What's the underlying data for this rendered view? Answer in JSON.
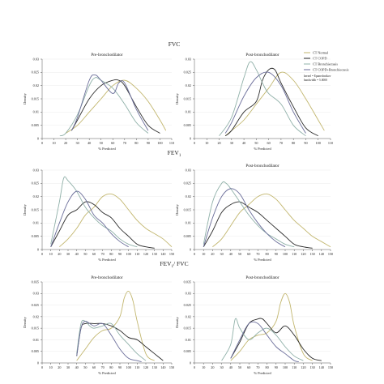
{
  "sections": [
    {
      "title": "FVC",
      "sub": ""
    },
    {
      "title": "FEV",
      "sub": "1"
    },
    {
      "title": "FEV",
      "sub": "1",
      "suffix": "/ FVC"
    }
  ],
  "legend": {
    "entries": [
      "CT Normal",
      "CT COPD",
      "CT Bronchiectasis",
      "CT COPD+Bronchiectasis"
    ],
    "note_lines": [
      "kernel = Epanechnikov",
      "bandwidth = 5.0000"
    ]
  },
  "colors": {
    "CT Normal": "#c2b66e",
    "CT COPD": "#2b2b2b",
    "CT Bronchiectasis": "#8fb0a8",
    "CT COPD+Bronchiectasis": "#6b6e9a"
  },
  "chart_data": [
    {
      "type": "line",
      "title": "Pre-bronchodilator",
      "xlabel": "% Predicted",
      "ylabel": "Density",
      "xlim": [
        0,
        110
      ],
      "ylim": [
        0,
        0.03
      ],
      "xticks": [
        "0",
        "10",
        "20",
        "30",
        "40",
        "50",
        "60",
        "70",
        "80",
        "90",
        "100",
        "110"
      ],
      "yticks": [
        "0",
        "0.005",
        "0.01",
        "0.015",
        "0.02",
        "0.025",
        "0.03"
      ],
      "series": [
        {
          "name": "CT Normal",
          "x": [
            20,
            30,
            40,
            50,
            60,
            70,
            80,
            90,
            100,
            105
          ],
          "y": [
            0.002,
            0.005,
            0.01,
            0.015,
            0.02,
            0.022,
            0.019,
            0.014,
            0.007,
            0.003
          ]
        },
        {
          "name": "CT COPD",
          "x": [
            25,
            30,
            40,
            50,
            60,
            65,
            70,
            80,
            90,
            100
          ],
          "y": [
            0.003,
            0.007,
            0.015,
            0.02,
            0.022,
            0.022,
            0.02,
            0.012,
            0.005,
            0.002
          ]
        },
        {
          "name": "CT Bronchiectasis",
          "x": [
            15,
            20,
            30,
            40,
            45,
            50,
            60,
            70,
            80,
            90
          ],
          "y": [
            0.001,
            0.002,
            0.009,
            0.02,
            0.023,
            0.022,
            0.019,
            0.013,
            0.006,
            0.002
          ]
        },
        {
          "name": "CT COPD+Bronchiectasis",
          "x": [
            25,
            30,
            40,
            45,
            50,
            60,
            65,
            70,
            80,
            90
          ],
          "y": [
            0.003,
            0.008,
            0.022,
            0.024,
            0.022,
            0.017,
            0.021,
            0.021,
            0.011,
            0.003
          ]
        }
      ]
    },
    {
      "type": "line",
      "title": "Post-bronchodilator",
      "xlabel": "% Predicted",
      "ylabel": "Density",
      "xlim": [
        0,
        110
      ],
      "ylim": [
        0,
        0.03
      ],
      "xticks": [
        "0",
        "10",
        "20",
        "30",
        "40",
        "50",
        "60",
        "70",
        "80",
        "90",
        "100",
        "110"
      ],
      "yticks": [
        "0",
        "0.005",
        "0.01",
        "0.015",
        "0.02",
        "0.025",
        "0.03"
      ],
      "series": [
        {
          "name": "CT Normal",
          "x": [
            25,
            30,
            40,
            50,
            60,
            70,
            80,
            90,
            100,
            105
          ],
          "y": [
            0.001,
            0.003,
            0.007,
            0.013,
            0.019,
            0.025,
            0.022,
            0.015,
            0.007,
            0.003
          ]
        },
        {
          "name": "CT COPD",
          "x": [
            25,
            30,
            40,
            50,
            55,
            60,
            65,
            70,
            80,
            90,
            100
          ],
          "y": [
            0.001,
            0.003,
            0.01,
            0.014,
            0.022,
            0.026,
            0.026,
            0.021,
            0.012,
            0.004,
            0.001
          ]
        },
        {
          "name": "CT Bronchiectasis",
          "x": [
            20,
            30,
            40,
            45,
            50,
            55,
            60,
            70,
            80,
            90
          ],
          "y": [
            0.001,
            0.008,
            0.023,
            0.029,
            0.026,
            0.021,
            0.017,
            0.013,
            0.005,
            0.001
          ]
        },
        {
          "name": "CT COPD+Bronchiectasis",
          "x": [
            25,
            30,
            40,
            50,
            60,
            70,
            80,
            90
          ],
          "y": [
            0.002,
            0.006,
            0.016,
            0.023,
            0.025,
            0.02,
            0.01,
            0.002
          ]
        }
      ]
    },
    {
      "type": "line",
      "title": "",
      "xlabel": "% Predicted",
      "ylabel": "Density",
      "xlim": [
        0,
        150
      ],
      "ylim": [
        0,
        0.03
      ],
      "xticks": [
        "0",
        "10",
        "20",
        "30",
        "40",
        "50",
        "60",
        "70",
        "80",
        "90",
        "100",
        "110",
        "120",
        "130",
        "140",
        "150"
      ],
      "yticks": [
        "0",
        "0.005",
        "0.01",
        "0.015",
        "0.02",
        "0.025",
        "0.03"
      ],
      "series": [
        {
          "name": "CT Normal",
          "x": [
            20,
            30,
            40,
            50,
            60,
            70,
            80,
            90,
            100,
            110,
            120,
            130,
            140,
            150
          ],
          "y": [
            0.001,
            0.004,
            0.008,
            0.013,
            0.016,
            0.02,
            0.021,
            0.019,
            0.015,
            0.011,
            0.008,
            0.006,
            0.004,
            0.001
          ]
        },
        {
          "name": "CT COPD",
          "x": [
            10,
            20,
            30,
            40,
            50,
            60,
            70,
            80,
            90,
            100,
            110,
            120,
            130
          ],
          "y": [
            0.001,
            0.007,
            0.013,
            0.015,
            0.018,
            0.017,
            0.014,
            0.012,
            0.008,
            0.005,
            0.002,
            0.001,
            0.0005
          ]
        },
        {
          "name": "CT Bronchiectasis",
          "x": [
            10,
            20,
            25,
            30,
            40,
            50,
            60,
            70,
            80,
            90,
            100,
            110
          ],
          "y": [
            0.002,
            0.018,
            0.027,
            0.026,
            0.022,
            0.016,
            0.012,
            0.009,
            0.007,
            0.004,
            0.002,
            0.001
          ]
        },
        {
          "name": "CT COPD+Bronchiectasis",
          "x": [
            10,
            20,
            30,
            40,
            50,
            60,
            70,
            80,
            90,
            100
          ],
          "y": [
            0.001,
            0.01,
            0.018,
            0.022,
            0.019,
            0.013,
            0.01,
            0.006,
            0.003,
            0.001
          ]
        }
      ]
    },
    {
      "type": "line",
      "title": "Post-bronchodilator",
      "xlabel": "% Predicted",
      "ylabel": "Density",
      "xlim": [
        0,
        150
      ],
      "ylim": [
        0,
        0.03
      ],
      "xticks": [
        "0",
        "10",
        "20",
        "30",
        "40",
        "50",
        "60",
        "70",
        "80",
        "90",
        "100",
        "110",
        "120",
        "130",
        "140",
        "150"
      ],
      "yticks": [
        "0",
        "0.005",
        "0.01",
        "0.015",
        "0.02",
        "0.025",
        "0.03"
      ],
      "series": [
        {
          "name": "CT Normal",
          "x": [
            20,
            30,
            40,
            50,
            60,
            70,
            80,
            90,
            100,
            110,
            120,
            130,
            140,
            150
          ],
          "y": [
            0.001,
            0.004,
            0.009,
            0.014,
            0.017,
            0.02,
            0.021,
            0.019,
            0.015,
            0.011,
            0.008,
            0.005,
            0.003,
            0.001
          ]
        },
        {
          "name": "CT COPD",
          "x": [
            10,
            20,
            30,
            40,
            50,
            60,
            70,
            80,
            90,
            100,
            110,
            120,
            130
          ],
          "y": [
            0.001,
            0.007,
            0.014,
            0.017,
            0.018,
            0.016,
            0.014,
            0.011,
            0.008,
            0.005,
            0.002,
            0.001,
            0.0005
          ]
        },
        {
          "name": "CT Bronchiectasis",
          "x": [
            10,
            20,
            30,
            35,
            40,
            50,
            60,
            70,
            80,
            90,
            100,
            110
          ],
          "y": [
            0.002,
            0.018,
            0.025,
            0.025,
            0.023,
            0.018,
            0.013,
            0.009,
            0.006,
            0.004,
            0.002,
            0.001
          ]
        },
        {
          "name": "CT COPD+Bronchiectasis",
          "x": [
            10,
            20,
            30,
            40,
            50,
            60,
            70,
            80,
            90,
            100
          ],
          "y": [
            0.001,
            0.012,
            0.02,
            0.023,
            0.021,
            0.015,
            0.01,
            0.006,
            0.003,
            0.001
          ]
        }
      ]
    },
    {
      "type": "line",
      "title": "Pre-bronchodilator",
      "xlabel": "% Predicted",
      "ylabel": "Density",
      "xlim": [
        0,
        150
      ],
      "ylim": [
        0,
        0.035
      ],
      "xticks": [
        "0",
        "10",
        "20",
        "30",
        "40",
        "50",
        "60",
        "70",
        "80",
        "90",
        "100",
        "110",
        "120",
        "130",
        "140",
        "150"
      ],
      "yticks": [
        "0",
        "0.005",
        "0.01",
        "0.015",
        "0.02",
        "0.025",
        "0.03",
        "0.035"
      ],
      "series": [
        {
          "name": "CT Normal",
          "x": [
            40,
            50,
            60,
            70,
            80,
            90,
            95,
            100,
            105,
            110,
            120,
            130
          ],
          "y": [
            0.001,
            0.006,
            0.011,
            0.014,
            0.015,
            0.02,
            0.028,
            0.031,
            0.027,
            0.018,
            0.004,
            0.001
          ]
        },
        {
          "name": "CT COPD",
          "x": [
            40,
            45,
            50,
            60,
            70,
            80,
            90,
            100,
            110,
            120,
            130,
            140
          ],
          "y": [
            0.003,
            0.015,
            0.017,
            0.017,
            0.017,
            0.016,
            0.014,
            0.011,
            0.01,
            0.007,
            0.004,
            0.001
          ]
        },
        {
          "name": "CT Bronchiectasis",
          "x": [
            40,
            45,
            50,
            55,
            60,
            70,
            80,
            90,
            100,
            110,
            120
          ],
          "y": [
            0.004,
            0.017,
            0.018,
            0.016,
            0.015,
            0.016,
            0.017,
            0.012,
            0.008,
            0.004,
            0.001
          ]
        },
        {
          "name": "CT COPD+Bronchiectasis",
          "x": [
            40,
            45,
            50,
            60,
            70,
            80,
            90,
            100,
            110,
            115
          ],
          "y": [
            0.003,
            0.015,
            0.018,
            0.016,
            0.017,
            0.012,
            0.006,
            0.002,
            0.001,
            0.0005
          ]
        }
      ]
    },
    {
      "type": "line",
      "title": "Post-bronchodilator",
      "xlabel": "% Predicted",
      "ylabel": "Density",
      "xlim": [
        0,
        150
      ],
      "ylim": [
        0,
        0.035
      ],
      "xticks": [
        "0",
        "10",
        "20",
        "30",
        "40",
        "50",
        "60",
        "70",
        "80",
        "90",
        "100",
        "110",
        "120",
        "130",
        "140",
        "150"
      ],
      "yticks": [
        "0",
        "0.005",
        "0.01",
        "0.015",
        "0.02",
        "0.025",
        "0.03",
        "0.035"
      ],
      "series": [
        {
          "name": "CT Normal",
          "x": [
            40,
            50,
            60,
            70,
            80,
            90,
            95,
            100,
            105,
            110,
            120,
            130
          ],
          "y": [
            0.001,
            0.005,
            0.01,
            0.012,
            0.013,
            0.018,
            0.026,
            0.03,
            0.026,
            0.016,
            0.004,
            0.001
          ]
        },
        {
          "name": "CT COPD",
          "x": [
            40,
            50,
            60,
            70,
            75,
            80,
            90,
            100,
            110,
            120,
            130,
            140
          ],
          "y": [
            0.002,
            0.009,
            0.017,
            0.019,
            0.019,
            0.017,
            0.013,
            0.016,
            0.012,
            0.006,
            0.002,
            0.001
          ]
        },
        {
          "name": "CT Bronchiectasis",
          "x": [
            30,
            40,
            45,
            50,
            60,
            70,
            80,
            90,
            100,
            110,
            120
          ],
          "y": [
            0.001,
            0.008,
            0.019,
            0.015,
            0.01,
            0.013,
            0.015,
            0.012,
            0.007,
            0.003,
            0.001
          ]
        },
        {
          "name": "CT COPD+Bronchiectasis",
          "x": [
            40,
            50,
            60,
            70,
            80,
            90,
            100,
            110,
            115
          ],
          "y": [
            0.002,
            0.01,
            0.017,
            0.017,
            0.012,
            0.007,
            0.004,
            0.001,
            0.0005
          ]
        }
      ]
    }
  ]
}
